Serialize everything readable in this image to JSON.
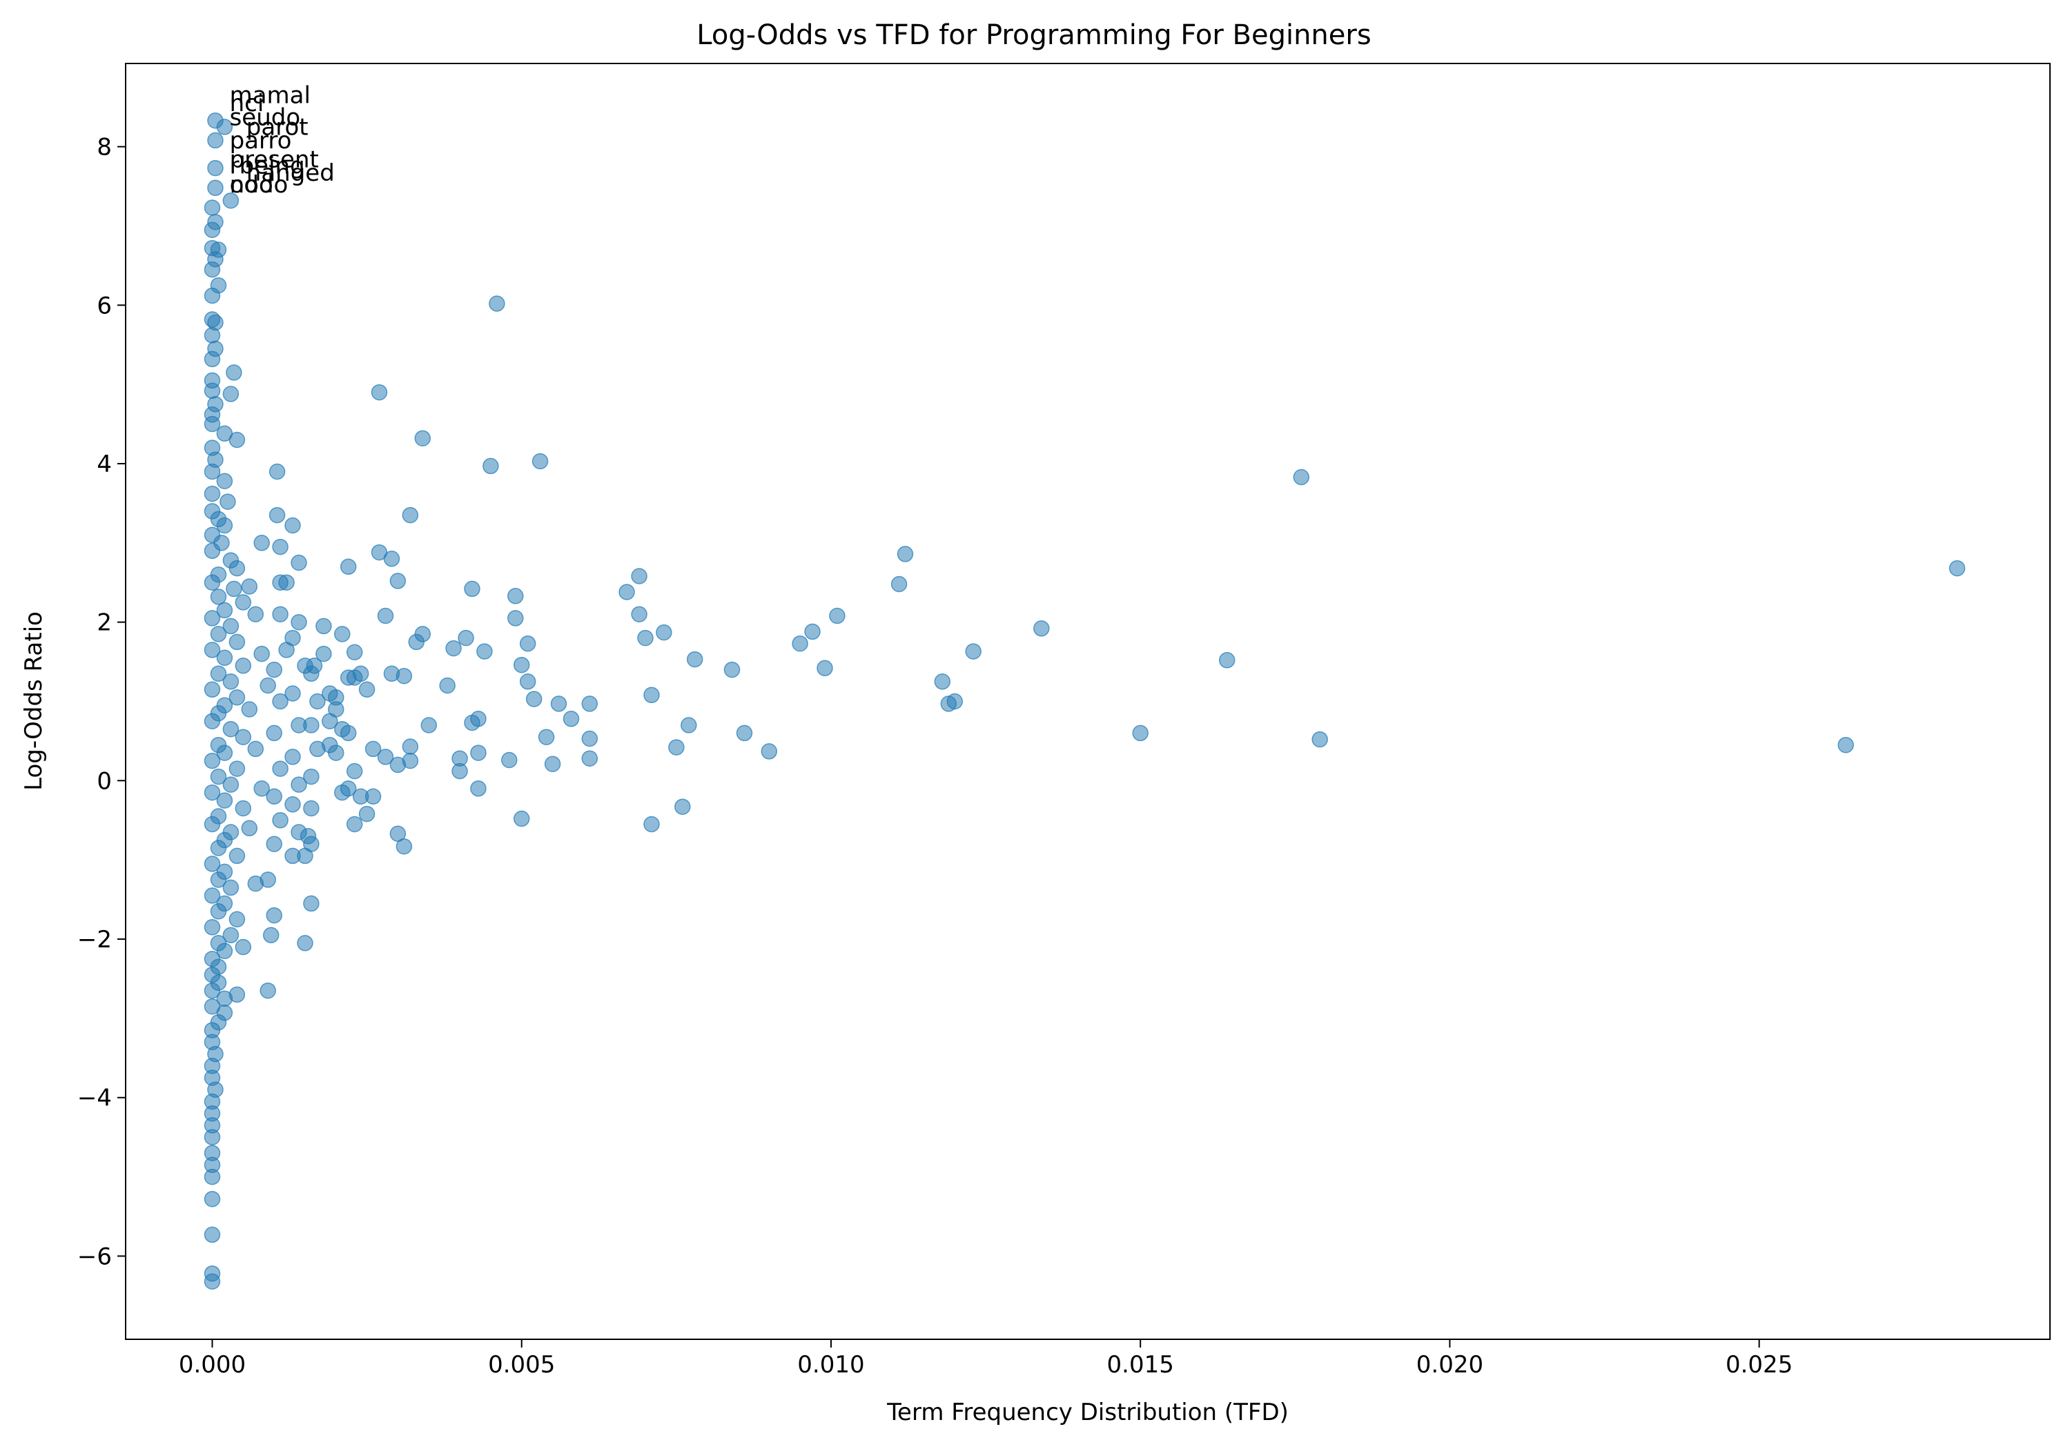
{
  "chart_data": {
    "type": "scatter",
    "title": "Log-Odds vs TFD for Programming For Beginners",
    "xlabel": "Term Frequency Distribution (TFD)",
    "ylabel": "Log-Odds Ratio",
    "xlim": [
      -0.0014,
      0.0297
    ],
    "ylim": [
      -7.05,
      9.05
    ],
    "xticks": [
      0.0,
      0.005,
      0.01,
      0.015,
      0.02,
      0.025
    ],
    "xtick_labels": [
      "0.000",
      "0.005",
      "0.010",
      "0.015",
      "0.020",
      "0.025"
    ],
    "yticks": [
      -6,
      -4,
      -2,
      0,
      2,
      4,
      6,
      8
    ],
    "ytick_labels": [
      "−6",
      "−4",
      "−2",
      "0",
      "2",
      "4",
      "6",
      "8"
    ],
    "grid": false,
    "legend": "none",
    "point_color": "#1f77b4",
    "point_alpha": 0.5,
    "annotations": [
      {
        "text": "mamal",
        "x": 0.00028,
        "y": 8.55
      },
      {
        "text": "nci",
        "x": 0.00028,
        "y": 8.45
      },
      {
        "text": "seudo",
        "x": 0.00028,
        "y": 8.27
      },
      {
        "text": "parot",
        "x": 0.00055,
        "y": 8.15
      },
      {
        "text": "parro",
        "x": 0.00028,
        "y": 7.98
      },
      {
        "text": "present",
        "x": 0.00028,
        "y": 7.74
      },
      {
        "text": "rbeing",
        "x": 0.00028,
        "y": 7.66
      },
      {
        "text": "hanged",
        "x": 0.00055,
        "y": 7.57
      },
      {
        "text": "odo",
        "x": 0.00028,
        "y": 7.42
      },
      {
        "text": "nodo",
        "x": 0.00028,
        "y": 7.42
      }
    ],
    "points": [
      {
        "x": 5e-05,
        "y": 8.33
      },
      {
        "x": 0.0002,
        "y": 8.25
      },
      {
        "x": 5e-05,
        "y": 8.08
      },
      {
        "x": 5e-05,
        "y": 7.73
      },
      {
        "x": 5e-05,
        "y": 7.48
      },
      {
        "x": 0.0003,
        "y": 7.32
      },
      {
        "x": 0.0,
        "y": 7.23
      },
      {
        "x": 5e-05,
        "y": 7.05
      },
      {
        "x": 0.0,
        "y": 6.95
      },
      {
        "x": 0.0,
        "y": 6.72
      },
      {
        "x": 0.0001,
        "y": 6.7
      },
      {
        "x": 5e-05,
        "y": 6.58
      },
      {
        "x": 0.0,
        "y": 6.45
      },
      {
        "x": 0.0001,
        "y": 6.25
      },
      {
        "x": 0.0,
        "y": 6.12
      },
      {
        "x": 0.0,
        "y": 5.82
      },
      {
        "x": 5e-05,
        "y": 5.78
      },
      {
        "x": 0.0,
        "y": 5.62
      },
      {
        "x": 5e-05,
        "y": 5.45
      },
      {
        "x": 0.0,
        "y": 5.32
      },
      {
        "x": 0.00035,
        "y": 5.15
      },
      {
        "x": 0.0,
        "y": 5.05
      },
      {
        "x": 0.0,
        "y": 4.92
      },
      {
        "x": 0.0003,
        "y": 4.88
      },
      {
        "x": 5e-05,
        "y": 4.75
      },
      {
        "x": 0.0,
        "y": 4.62
      },
      {
        "x": 0.0,
        "y": 4.5
      },
      {
        "x": 0.0002,
        "y": 4.38
      },
      {
        "x": 0.0004,
        "y": 4.3
      },
      {
        "x": 0.0,
        "y": 4.2
      },
      {
        "x": 5e-05,
        "y": 4.05
      },
      {
        "x": 0.0,
        "y": 3.9
      },
      {
        "x": 0.0002,
        "y": 3.78
      },
      {
        "x": 0.0,
        "y": 3.62
      },
      {
        "x": 0.00025,
        "y": 3.52
      },
      {
        "x": 0.0,
        "y": 3.4
      },
      {
        "x": 0.0001,
        "y": 3.3
      },
      {
        "x": 0.0002,
        "y": 3.22
      },
      {
        "x": 0.0,
        "y": 3.1
      },
      {
        "x": 0.00015,
        "y": 3.0
      },
      {
        "x": 0.0,
        "y": 2.9
      },
      {
        "x": 0.0003,
        "y": 2.78
      },
      {
        "x": 0.0004,
        "y": 2.68
      },
      {
        "x": 0.0001,
        "y": 2.6
      },
      {
        "x": 0.0,
        "y": 2.5
      },
      {
        "x": 0.00035,
        "y": 2.42
      },
      {
        "x": 0.0001,
        "y": 2.32
      },
      {
        "x": 0.0005,
        "y": 2.25
      },
      {
        "x": 0.0002,
        "y": 2.15
      },
      {
        "x": 0.0,
        "y": 2.05
      },
      {
        "x": 0.0003,
        "y": 1.95
      },
      {
        "x": 0.0001,
        "y": 1.85
      },
      {
        "x": 0.0004,
        "y": 1.75
      },
      {
        "x": 0.0,
        "y": 1.65
      },
      {
        "x": 0.0002,
        "y": 1.55
      },
      {
        "x": 0.0005,
        "y": 1.45
      },
      {
        "x": 0.0001,
        "y": 1.35
      },
      {
        "x": 0.0003,
        "y": 1.25
      },
      {
        "x": 0.0,
        "y": 1.15
      },
      {
        "x": 0.0004,
        "y": 1.05
      },
      {
        "x": 0.0002,
        "y": 0.95
      },
      {
        "x": 0.0001,
        "y": 0.85
      },
      {
        "x": 0.0,
        "y": 0.75
      },
      {
        "x": 0.0003,
        "y": 0.65
      },
      {
        "x": 0.0005,
        "y": 0.55
      },
      {
        "x": 0.0001,
        "y": 0.45
      },
      {
        "x": 0.0002,
        "y": 0.35
      },
      {
        "x": 0.0,
        "y": 0.25
      },
      {
        "x": 0.0004,
        "y": 0.15
      },
      {
        "x": 0.0001,
        "y": 0.05
      },
      {
        "x": 0.0003,
        "y": -0.05
      },
      {
        "x": 0.0,
        "y": -0.15
      },
      {
        "x": 0.0002,
        "y": -0.25
      },
      {
        "x": 0.0005,
        "y": -0.35
      },
      {
        "x": 0.0001,
        "y": -0.45
      },
      {
        "x": 0.0,
        "y": -0.55
      },
      {
        "x": 0.0003,
        "y": -0.65
      },
      {
        "x": 0.0002,
        "y": -0.75
      },
      {
        "x": 0.0001,
        "y": -0.85
      },
      {
        "x": 0.0004,
        "y": -0.95
      },
      {
        "x": 0.0,
        "y": -1.05
      },
      {
        "x": 0.0002,
        "y": -1.15
      },
      {
        "x": 0.0001,
        "y": -1.25
      },
      {
        "x": 0.0003,
        "y": -1.35
      },
      {
        "x": 0.0,
        "y": -1.45
      },
      {
        "x": 0.0002,
        "y": -1.55
      },
      {
        "x": 0.0001,
        "y": -1.65
      },
      {
        "x": 0.0004,
        "y": -1.75
      },
      {
        "x": 0.0,
        "y": -1.85
      },
      {
        "x": 0.0003,
        "y": -1.95
      },
      {
        "x": 0.0001,
        "y": -2.05
      },
      {
        "x": 0.0002,
        "y": -2.15
      },
      {
        "x": 0.0,
        "y": -2.25
      },
      {
        "x": 0.0001,
        "y": -2.35
      },
      {
        "x": 0.0,
        "y": -2.45
      },
      {
        "x": 0.0001,
        "y": -2.55
      },
      {
        "x": 0.0,
        "y": -2.65
      },
      {
        "x": 0.0002,
        "y": -2.75
      },
      {
        "x": 0.0,
        "y": -2.85
      },
      {
        "x": 0.0002,
        "y": -2.93
      },
      {
        "x": 0.0001,
        "y": -3.05
      },
      {
        "x": 0.0,
        "y": -3.15
      },
      {
        "x": 0.0,
        "y": -3.3
      },
      {
        "x": 5e-05,
        "y": -3.45
      },
      {
        "x": 0.0,
        "y": -3.6
      },
      {
        "x": 0.0,
        "y": -3.75
      },
      {
        "x": 5e-05,
        "y": -3.9
      },
      {
        "x": 0.0,
        "y": -4.05
      },
      {
        "x": 0.0,
        "y": -4.2
      },
      {
        "x": 0.0,
        "y": -4.35
      },
      {
        "x": 0.0,
        "y": -4.5
      },
      {
        "x": 0.0,
        "y": -4.7
      },
      {
        "x": 0.0,
        "y": -4.85
      },
      {
        "x": 0.0,
        "y": -5.0
      },
      {
        "x": 0.0,
        "y": -5.28
      },
      {
        "x": 0.0,
        "y": -5.73
      },
      {
        "x": 0.0,
        "y": -6.22
      },
      {
        "x": 0.0,
        "y": -6.32
      },
      {
        "x": 0.0006,
        "y": 2.45
      },
      {
        "x": 0.0007,
        "y": 2.1
      },
      {
        "x": 0.0008,
        "y": 1.6
      },
      {
        "x": 0.0009,
        "y": 1.2
      },
      {
        "x": 0.0006,
        "y": 0.9
      },
      {
        "x": 0.0007,
        "y": 0.4
      },
      {
        "x": 0.0008,
        "y": -0.1
      },
      {
        "x": 0.0006,
        "y": -0.6
      },
      {
        "x": 0.0007,
        "y": -1.3
      },
      {
        "x": 0.0005,
        "y": -2.1
      },
      {
        "x": 0.0004,
        "y": -2.7
      },
      {
        "x": 0.0009,
        "y": -2.65
      },
      {
        "x": 0.00095,
        "y": -1.95
      },
      {
        "x": 0.001,
        "y": -1.7
      },
      {
        "x": 0.0009,
        "y": -1.25
      },
      {
        "x": 0.001,
        "y": -0.8
      },
      {
        "x": 0.0011,
        "y": -0.5
      },
      {
        "x": 0.001,
        "y": -0.2
      },
      {
        "x": 0.0011,
        "y": 0.15
      },
      {
        "x": 0.001,
        "y": 0.6
      },
      {
        "x": 0.0011,
        "y": 1.0
      },
      {
        "x": 0.001,
        "y": 1.4
      },
      {
        "x": 0.0011,
        "y": 2.1
      },
      {
        "x": 0.0011,
        "y": 2.5
      },
      {
        "x": 0.0011,
        "y": 2.95
      },
      {
        "x": 0.00105,
        "y": 3.35
      },
      {
        "x": 0.00105,
        "y": 3.9
      },
      {
        "x": 0.0008,
        "y": 3.0
      },
      {
        "x": 0.0013,
        "y": 3.22
      },
      {
        "x": 0.0014,
        "y": 2.75
      },
      {
        "x": 0.0012,
        "y": 2.5
      },
      {
        "x": 0.0014,
        "y": 2.0
      },
      {
        "x": 0.0012,
        "y": 1.65
      },
      {
        "x": 0.0013,
        "y": 1.8
      },
      {
        "x": 0.0015,
        "y": 1.45
      },
      {
        "x": 0.0013,
        "y": 1.1
      },
      {
        "x": 0.0014,
        "y": 0.7
      },
      {
        "x": 0.0013,
        "y": 0.3
      },
      {
        "x": 0.0014,
        "y": -0.05
      },
      {
        "x": 0.0013,
        "y": -0.3
      },
      {
        "x": 0.0014,
        "y": -0.65
      },
      {
        "x": 0.0013,
        "y": -0.95
      },
      {
        "x": 0.0015,
        "y": -0.95
      },
      {
        "x": 0.00155,
        "y": -0.7
      },
      {
        "x": 0.0016,
        "y": -0.35
      },
      {
        "x": 0.0016,
        "y": 0.05
      },
      {
        "x": 0.0017,
        "y": 0.4
      },
      {
        "x": 0.0016,
        "y": 0.7
      },
      {
        "x": 0.0017,
        "y": 1.0
      },
      {
        "x": 0.0016,
        "y": 1.35
      },
      {
        "x": 0.00165,
        "y": 1.45
      },
      {
        "x": 0.0018,
        "y": 1.6
      },
      {
        "x": 0.0018,
        "y": 1.95
      },
      {
        "x": 0.0015,
        "y": -2.05
      },
      {
        "x": 0.0016,
        "y": -1.55
      },
      {
        "x": 0.0016,
        "y": -0.8
      },
      {
        "x": 0.0019,
        "y": 1.1
      },
      {
        "x": 0.0019,
        "y": 0.75
      },
      {
        "x": 0.0019,
        "y": 0.45
      },
      {
        "x": 0.002,
        "y": 0.35
      },
      {
        "x": 0.002,
        "y": 0.9
      },
      {
        "x": 0.002,
        "y": 1.05
      },
      {
        "x": 0.0021,
        "y": -0.15
      },
      {
        "x": 0.0021,
        "y": 0.65
      },
      {
        "x": 0.0022,
        "y": 0.6
      },
      {
        "x": 0.0022,
        "y": -0.1
      },
      {
        "x": 0.0022,
        "y": 1.3
      },
      {
        "x": 0.0021,
        "y": 1.85
      },
      {
        "x": 0.0022,
        "y": 2.7
      },
      {
        "x": 0.0023,
        "y": 1.3
      },
      {
        "x": 0.0023,
        "y": 1.62
      },
      {
        "x": 0.0023,
        "y": 0.12
      },
      {
        "x": 0.0023,
        "y": -0.55
      },
      {
        "x": 0.0024,
        "y": -0.2
      },
      {
        "x": 0.0024,
        "y": 1.35
      },
      {
        "x": 0.0025,
        "y": 1.15
      },
      {
        "x": 0.0025,
        "y": -0.42
      },
      {
        "x": 0.0026,
        "y": -0.2
      },
      {
        "x": 0.0026,
        "y": 0.4
      },
      {
        "x": 0.0027,
        "y": 2.88
      },
      {
        "x": 0.0027,
        "y": 4.9
      },
      {
        "x": 0.0028,
        "y": 2.08
      },
      {
        "x": 0.0028,
        "y": 0.3
      },
      {
        "x": 0.0029,
        "y": 1.35
      },
      {
        "x": 0.0029,
        "y": 2.8
      },
      {
        "x": 0.003,
        "y": 2.52
      },
      {
        "x": 0.003,
        "y": 0.2
      },
      {
        "x": 0.003,
        "y": -0.67
      },
      {
        "x": 0.0031,
        "y": -0.83
      },
      {
        "x": 0.0031,
        "y": 1.32
      },
      {
        "x": 0.0032,
        "y": 0.25
      },
      {
        "x": 0.0032,
        "y": 0.43
      },
      {
        "x": 0.0032,
        "y": 3.35
      },
      {
        "x": 0.0033,
        "y": 1.75
      },
      {
        "x": 0.0034,
        "y": 1.85
      },
      {
        "x": 0.0034,
        "y": 4.32
      },
      {
        "x": 0.0035,
        "y": 0.7
      },
      {
        "x": 0.0038,
        "y": 1.2
      },
      {
        "x": 0.0039,
        "y": 1.67
      },
      {
        "x": 0.004,
        "y": 0.28
      },
      {
        "x": 0.004,
        "y": 0.12
      },
      {
        "x": 0.0041,
        "y": 1.8
      },
      {
        "x": 0.0042,
        "y": 2.42
      },
      {
        "x": 0.0042,
        "y": 0.73
      },
      {
        "x": 0.0043,
        "y": 0.78
      },
      {
        "x": 0.0043,
        "y": 0.35
      },
      {
        "x": 0.0043,
        "y": -0.1
      },
      {
        "x": 0.0044,
        "y": 1.63
      },
      {
        "x": 0.0045,
        "y": 3.97
      },
      {
        "x": 0.0046,
        "y": 6.02
      },
      {
        "x": 0.0048,
        "y": 0.26
      },
      {
        "x": 0.0049,
        "y": 2.05
      },
      {
        "x": 0.0049,
        "y": 2.33
      },
      {
        "x": 0.005,
        "y": 1.46
      },
      {
        "x": 0.005,
        "y": -0.48
      },
      {
        "x": 0.0051,
        "y": 1.25
      },
      {
        "x": 0.0051,
        "y": 1.73
      },
      {
        "x": 0.0052,
        "y": 1.03
      },
      {
        "x": 0.0053,
        "y": 4.03
      },
      {
        "x": 0.0054,
        "y": 0.55
      },
      {
        "x": 0.0055,
        "y": 0.21
      },
      {
        "x": 0.0056,
        "y": 0.97
      },
      {
        "x": 0.0058,
        "y": 0.78
      },
      {
        "x": 0.0061,
        "y": 0.53
      },
      {
        "x": 0.0061,
        "y": 0.97
      },
      {
        "x": 0.0061,
        "y": 0.28
      },
      {
        "x": 0.0067,
        "y": 2.38
      },
      {
        "x": 0.0069,
        "y": 2.1
      },
      {
        "x": 0.0069,
        "y": 2.58
      },
      {
        "x": 0.007,
        "y": 1.8
      },
      {
        "x": 0.0071,
        "y": 1.08
      },
      {
        "x": 0.0071,
        "y": -0.55
      },
      {
        "x": 0.0073,
        "y": 1.87
      },
      {
        "x": 0.0075,
        "y": 0.42
      },
      {
        "x": 0.0076,
        "y": -0.33
      },
      {
        "x": 0.0077,
        "y": 0.7
      },
      {
        "x": 0.0078,
        "y": 1.53
      },
      {
        "x": 0.0084,
        "y": 1.4
      },
      {
        "x": 0.0086,
        "y": 0.6
      },
      {
        "x": 0.009,
        "y": 0.37
      },
      {
        "x": 0.0095,
        "y": 1.73
      },
      {
        "x": 0.0097,
        "y": 1.88
      },
      {
        "x": 0.0099,
        "y": 1.42
      },
      {
        "x": 0.0101,
        "y": 2.08
      },
      {
        "x": 0.0111,
        "y": 2.48
      },
      {
        "x": 0.0112,
        "y": 2.86
      },
      {
        "x": 0.0118,
        "y": 1.25
      },
      {
        "x": 0.0119,
        "y": 0.97
      },
      {
        "x": 0.012,
        "y": 1.0
      },
      {
        "x": 0.0123,
        "y": 1.63
      },
      {
        "x": 0.0134,
        "y": 1.92
      },
      {
        "x": 0.015,
        "y": 0.6
      },
      {
        "x": 0.0164,
        "y": 1.52
      },
      {
        "x": 0.0176,
        "y": 3.83
      },
      {
        "x": 0.0179,
        "y": 0.52
      },
      {
        "x": 0.0264,
        "y": 0.45
      },
      {
        "x": 0.0282,
        "y": 2.68
      }
    ]
  }
}
